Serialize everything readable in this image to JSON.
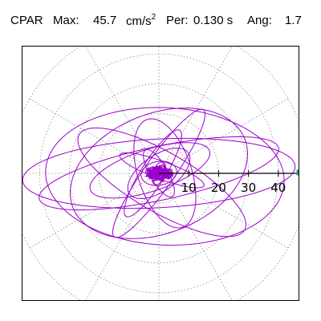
{
  "header": {
    "station": "CPAR",
    "max_label": "Max:",
    "max_value": "45.7",
    "max_unit": "cm/s",
    "max_unit_exp": "2",
    "per_label": "Per:",
    "per_value": "0.130 s",
    "ang_label": "Ang:",
    "ang_value": "1.7"
  },
  "chart_data": {
    "type": "scatter",
    "subtype": "polar-orbit",
    "radial_ticks": [
      10,
      20,
      30,
      40
    ],
    "radial_max": 50,
    "radial_grid": [
      10,
      20,
      30,
      40,
      50
    ],
    "angular_grid_deg": [
      0,
      30,
      60,
      90,
      120,
      150,
      180,
      210,
      240,
      270,
      300,
      330
    ],
    "grid": true,
    "direction_angle_deg": 1.7,
    "max_amplitude": 45.7,
    "colors": {
      "trace": "#9a00cc",
      "grid": "#8a8a8a",
      "axis": "#000000",
      "marker": "#00a070"
    },
    "ellipses": [
      {
        "cx": 0,
        "cy": 0,
        "a": 45.7,
        "b": 11.5,
        "rot_deg": 3
      },
      {
        "cx": 0,
        "cy": 0,
        "a": 41,
        "b": 9,
        "rot_deg": 12
      },
      {
        "cx": 2,
        "cy": -1,
        "a": 40,
        "b": 23,
        "rot_deg": -3
      },
      {
        "cx": 0,
        "cy": 0,
        "a": 31,
        "b": 20,
        "rot_deg": 22
      },
      {
        "cx": 1,
        "cy": -3,
        "a": 32,
        "b": 10,
        "rot_deg": -30
      },
      {
        "cx": 0,
        "cy": 0,
        "a": 26,
        "b": 5,
        "rot_deg": 55
      },
      {
        "cx": -3,
        "cy": 1,
        "a": 21,
        "b": 7,
        "rot_deg": 18
      },
      {
        "cx": 2,
        "cy": 0,
        "a": 19,
        "b": 9,
        "rot_deg": -72
      },
      {
        "cx": -2,
        "cy": 0,
        "a": 17,
        "b": 4,
        "rot_deg": 58
      },
      {
        "cx": 1,
        "cy": 1,
        "a": 15,
        "b": 3,
        "rot_deg": -20
      },
      {
        "cx": 0,
        "cy": 0,
        "a": 12,
        "b": 6,
        "rot_deg": 35
      },
      {
        "cx": 0,
        "cy": 0,
        "a": 9,
        "b": 3,
        "rot_deg": -60
      },
      {
        "cx": 0,
        "cy": 0,
        "a": 6,
        "b": 4,
        "rot_deg": 10
      },
      {
        "cx": 0,
        "cy": 0,
        "a": 4,
        "b": 2,
        "rot_deg": 70
      }
    ]
  }
}
